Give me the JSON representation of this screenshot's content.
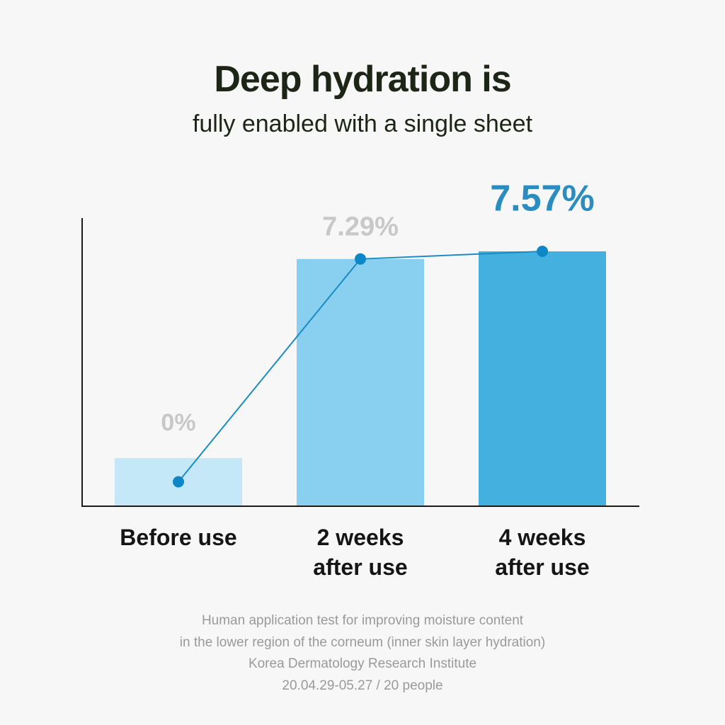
{
  "title": "Deep hydration is",
  "subtitle": "fully enabled with a single sheet",
  "chart_data": {
    "type": "bar",
    "categories": [
      [
        "Before use"
      ],
      [
        "2 weeks",
        "after use"
      ],
      [
        "4 weeks",
        "after use"
      ]
    ],
    "values": [
      0,
      7.29,
      7.57
    ],
    "value_labels": [
      "0%",
      "7.29%",
      "7.57%"
    ],
    "bar_colors": [
      "#c5e8f8",
      "#89cfef",
      "#43b0e0"
    ],
    "label_colors": [
      "#c8c8c8",
      "#c8c8c8",
      "#2a8cc0"
    ],
    "line_color": "#1a8cc4",
    "marker_color": "#0d87c7",
    "axis_color": "#1a1a1a",
    "grid": false,
    "legend": "none"
  },
  "footnote": [
    "Human application test for improving moisture content",
    "in the lower region of the corneum (inner skin layer hydration)",
    "Korea Dermatology Research Institute",
    "20.04.29-05.27 / 20 people"
  ]
}
